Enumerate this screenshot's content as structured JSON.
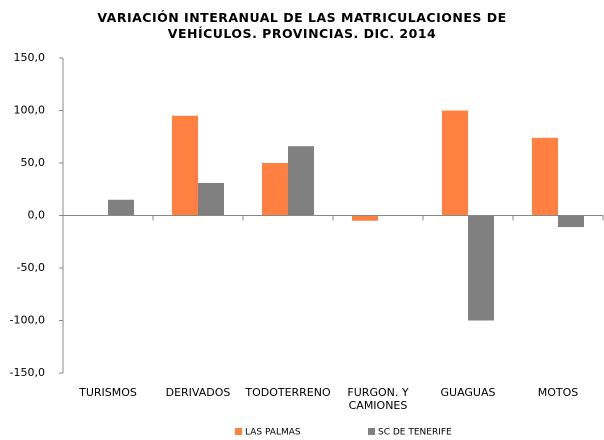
{
  "chart_data": {
    "type": "bar",
    "title": "VARIACIÓN INTERANUAL DE LAS MATRICULACIONES DE VEHÍCULOS. PROVINCIAS. DIC. 2014",
    "categories": [
      "TURISMOS",
      "DERIVADOS",
      "TODOTERRENO",
      "FURGON. Y CAMIONES",
      "GUAGUAS",
      "MOTOS"
    ],
    "series": [
      {
        "name": "LAS PALMAS",
        "color": "#ff8040",
        "values": [
          0,
          95,
          50,
          -5,
          100,
          74
        ]
      },
      {
        "name": "SC DE TENERIFE",
        "color": "#808080",
        "values": [
          15,
          31,
          66,
          0,
          -100,
          -11
        ]
      }
    ],
    "ylim": [
      -150,
      150
    ],
    "yticks": [
      {
        "value": -150,
        "label": "-150,0"
      },
      {
        "value": -100,
        "label": "-100,0"
      },
      {
        "value": -50,
        "label": "-50,0"
      },
      {
        "value": 0,
        "label": "0,0"
      },
      {
        "value": 50,
        "label": "50,0"
      },
      {
        "value": 100,
        "label": "100,0"
      },
      {
        "value": 150,
        "label": "150,0"
      }
    ],
    "grid": false,
    "legend": "bottom"
  }
}
